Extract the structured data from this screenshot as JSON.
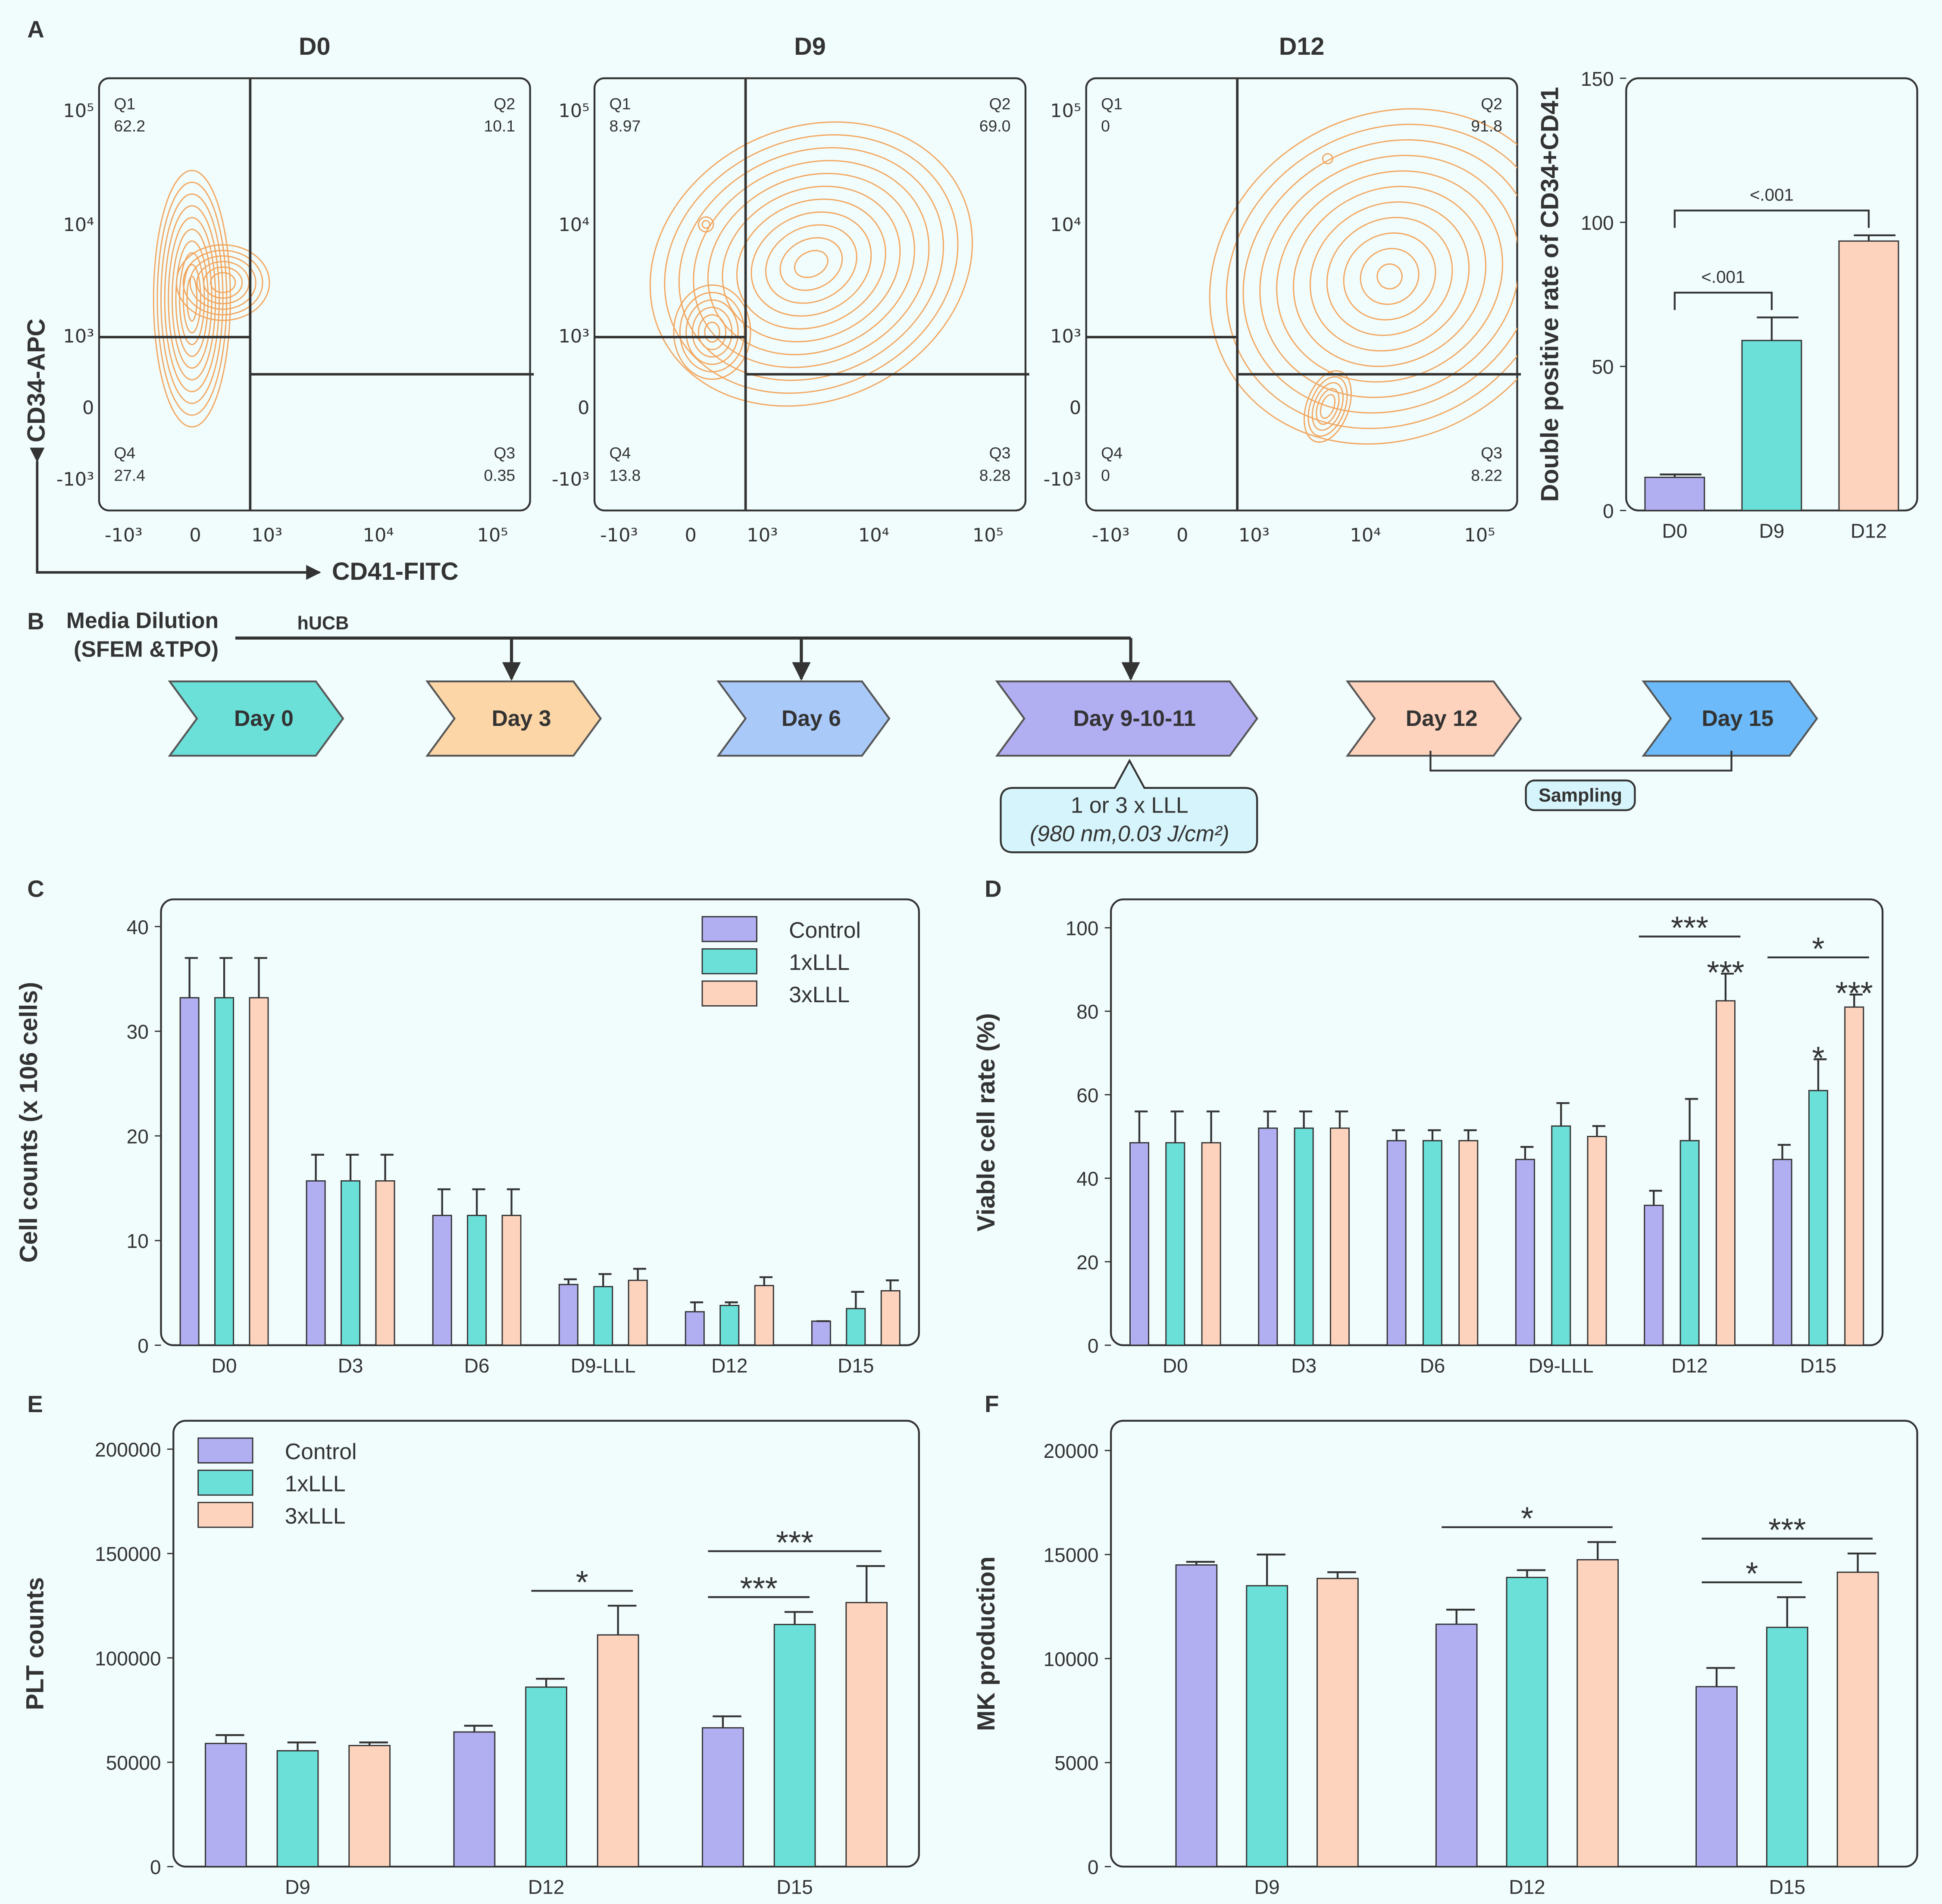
{
  "panel_labels": [
    "A",
    "B",
    "C",
    "D",
    "E",
    "F"
  ],
  "chart_data": [
    {
      "type": "contour",
      "title": "D0",
      "xlabel": "CD41-FITC",
      "ylabel": "CD34-APC",
      "scale": "biexponential",
      "color": "#f2a65e",
      "xlim": [
        -1700,
        213000
      ],
      "ylim": [
        -1950,
        193000
      ],
      "xticks": [
        {
          "value": -1000,
          "label": "-10³"
        },
        0,
        {
          "value": 1000,
          "label": "10³"
        },
        {
          "value": 10000,
          "label": "10⁴"
        },
        {
          "value": 100000,
          "label": "10⁵"
        }
      ],
      "yticks": [
        {
          "value": -1000,
          "label": "-10³"
        },
        0,
        {
          "value": 1000,
          "label": "10³"
        },
        {
          "value": 10000,
          "label": "10⁴"
        },
        {
          "value": 100000,
          "label": "10⁵"
        }
      ],
      "quadrants": [
        {
          "name": "Q1",
          "value": 62.2
        },
        {
          "name": "Q2",
          "value": 10.1
        },
        {
          "name": "Q3",
          "value": 0.35
        },
        {
          "name": "Q4",
          "value": 27.4
        }
      ]
    },
    {
      "type": "contour",
      "title": "D9",
      "scale": "biexponential",
      "color": "#f2a65e",
      "xlim": [
        -1700,
        213000
      ],
      "ylim": [
        -1950,
        193000
      ],
      "xticks": [
        {
          "value": -1000,
          "label": "-10³"
        },
        0,
        {
          "value": 1000,
          "label": "10³"
        },
        {
          "value": 10000,
          "label": "10⁴"
        },
        {
          "value": 100000,
          "label": "10⁵"
        }
      ],
      "yticks": [
        {
          "value": -1000,
          "label": "-10³"
        },
        0,
        {
          "value": 1000,
          "label": "10³"
        },
        {
          "value": 10000,
          "label": "10⁴"
        },
        {
          "value": 100000,
          "label": "10⁵"
        }
      ],
      "quadrants": [
        {
          "name": "Q1",
          "value": 8.97
        },
        {
          "name": "Q2",
          "value": 69,
          "label": "69.0"
        },
        {
          "name": "Q3",
          "value": 8.28
        },
        {
          "name": "Q4",
          "value": 13.8
        }
      ]
    },
    {
      "type": "contour",
      "title": "D12",
      "scale": "biexponential",
      "color": "#f2a65e",
      "xlim": [
        -1700,
        213000
      ],
      "ylim": [
        -1950,
        193000
      ],
      "xticks": [
        {
          "value": -1000,
          "label": "-10³"
        },
        0,
        {
          "value": 1000,
          "label": "10³"
        },
        {
          "value": 10000,
          "label": "10⁴"
        },
        {
          "value": 100000,
          "label": "10⁵"
        }
      ],
      "yticks": [
        {
          "value": -1000,
          "label": "-10³"
        },
        0,
        {
          "value": 1000,
          "label": "10³"
        },
        {
          "value": 10000,
          "label": "10⁴"
        },
        {
          "value": 100000,
          "label": "10⁵"
        }
      ],
      "quadrants": [
        {
          "name": "Q1",
          "value": 0
        },
        {
          "name": "Q2",
          "value": 91.8
        },
        {
          "name": "Q3",
          "value": 8.22
        },
        {
          "name": "Q4",
          "value": 0
        }
      ]
    },
    {
      "type": "bar",
      "ylabel": "Double positive rate of CD34+CD41",
      "categories": [
        "D0",
        "D9",
        "D12"
      ],
      "values": [
        11.5,
        59,
        93.5
      ],
      "errors": [
        1,
        8,
        2
      ],
      "colors": [
        "#b1aef2",
        "#6be0d9",
        "#fdd3bd"
      ],
      "ylim": [
        0,
        150
      ],
      "yticks": [
        0,
        50,
        100,
        150
      ],
      "annotations": [
        {
          "text": "<.001",
          "categories": [
            "D0",
            "D9"
          ]
        },
        {
          "text": "<.001",
          "categories": [
            "D0",
            "D12"
          ]
        }
      ]
    },
    {
      "type": "grouped_bar",
      "ylabel": "Cell counts (x 106 cells)",
      "categories": [
        "D0",
        "D3",
        "D6",
        "D9-LLL",
        "D12",
        "D15"
      ],
      "series": [
        {
          "name": "Control",
          "color": "#b1aef2",
          "values": [
            33.2,
            15.7,
            12.4,
            5.8,
            3.2,
            2.3
          ],
          "errors": [
            3.8,
            2.5,
            2.5,
            0.5,
            0.9,
            0
          ]
        },
        {
          "name": "1xLLL",
          "color": "#6be0d9",
          "values": [
            33.2,
            15.7,
            12.4,
            5.6,
            3.8,
            3.5
          ],
          "errors": [
            3.8,
            2.5,
            2.5,
            1.2,
            0.3,
            1.6
          ]
        },
        {
          "name": "3xLLL",
          "color": "#fdd3bd",
          "values": [
            33.2,
            15.7,
            12.4,
            6.2,
            5.7,
            5.2
          ],
          "errors": [
            3.8,
            2.5,
            2.5,
            1.1,
            0.8,
            1
          ]
        }
      ],
      "ylim": [
        0,
        42.6
      ],
      "yticks": [
        0,
        10,
        20,
        30,
        40
      ],
      "legend": "upper right",
      "annotations": []
    },
    {
      "type": "grouped_bar",
      "ylabel": "Viable cell rate (%)",
      "categories": [
        "D0",
        "D3",
        "D6",
        "D9-LLL",
        "D12",
        "D15"
      ],
      "series": [
        {
          "name": "Control",
          "color": "#b1aef2",
          "values": [
            48.5,
            52,
            49,
            44.5,
            33.5,
            44.5
          ],
          "errors": [
            7.5,
            4,
            2.5,
            3,
            3.5,
            3.5
          ]
        },
        {
          "name": "1xLLL",
          "color": "#6be0d9",
          "values": [
            48.5,
            52,
            49,
            52.5,
            49,
            61
          ],
          "errors": [
            7.5,
            4,
            2.5,
            5.5,
            10,
            7.5
          ]
        },
        {
          "name": "3xLLL",
          "color": "#fdd3bd",
          "values": [
            48.5,
            52,
            49,
            50,
            82.5,
            81
          ],
          "errors": [
            7.5,
            4,
            2.5,
            2.5,
            6.5,
            3
          ]
        }
      ],
      "ylim": [
        0,
        106.8
      ],
      "yticks": [
        0,
        20,
        40,
        60,
        80,
        100
      ],
      "annotations": [
        {
          "text": "***",
          "category": "D12",
          "series": [
            "3xLLL"
          ]
        },
        {
          "text": "***",
          "category": "D12",
          "series": [
            "Control",
            "3xLLL"
          ]
        },
        {
          "text": "*",
          "category": "D15",
          "series": [
            "1xLLL"
          ]
        },
        {
          "text": "***",
          "category": "D15",
          "series": [
            "3xLLL"
          ]
        },
        {
          "text": "*",
          "category": "D15",
          "series": [
            "Control",
            "3xLLL"
          ]
        }
      ]
    },
    {
      "type": "grouped_bar",
      "ylabel": "PLT counts",
      "categories": [
        "D9",
        "D12",
        "D15"
      ],
      "series": [
        {
          "name": "Control",
          "color": "#b1aef2",
          "values": [
            59000,
            64500,
            66500
          ],
          "errors": [
            4000,
            3000,
            5500
          ]
        },
        {
          "name": "1xLLL",
          "color": "#6be0d9",
          "values": [
            55500,
            86000,
            116000
          ],
          "errors": [
            4000,
            4000,
            6000
          ]
        },
        {
          "name": "3xLLL",
          "color": "#fdd3bd",
          "values": [
            58000,
            111000,
            126500
          ],
          "errors": [
            1500,
            14000,
            17500
          ]
        }
      ],
      "ylim": [
        0,
        213600
      ],
      "yticks": [
        0,
        50000,
        100000,
        150000,
        200000
      ],
      "legend": "upper left",
      "annotations": [
        {
          "text": "*",
          "category": "D12",
          "series": [
            "1xLLL",
            "3xLLL"
          ]
        },
        {
          "text": "***",
          "category": "D15",
          "series": [
            "Control",
            "1xLLL"
          ]
        },
        {
          "text": "***",
          "category": "D15",
          "series": [
            "Control",
            "3xLLL"
          ]
        }
      ]
    },
    {
      "type": "grouped_bar",
      "ylabel": "MK production",
      "categories": [
        "D9",
        "D12",
        "D15"
      ],
      "series": [
        {
          "name": "Control",
          "color": "#b1aef2",
          "values": [
            14500,
            11650,
            8650
          ],
          "errors": [
            150,
            700,
            900
          ]
        },
        {
          "name": "1xLLL",
          "color": "#6be0d9",
          "values": [
            13500,
            13900,
            11500
          ],
          "errors": [
            1500,
            350,
            1450
          ]
        },
        {
          "name": "3xLLL",
          "color": "#fdd3bd",
          "values": [
            13850,
            14750,
            14150
          ],
          "errors": [
            300,
            850,
            900
          ]
        }
      ],
      "ylim": [
        0,
        21430
      ],
      "yticks": [
        0,
        5000,
        10000,
        15000,
        20000
      ],
      "annotations": [
        {
          "text": "*",
          "category": "D12",
          "series": [
            "Control",
            "3xLLL"
          ]
        },
        {
          "text": "*",
          "category": "D15",
          "series": [
            "Control",
            "1xLLL"
          ]
        },
        {
          "text": "***",
          "category": "D15",
          "series": [
            "Control",
            "3xLLL"
          ]
        }
      ]
    }
  ],
  "timeline": {
    "source": [
      "Media Dilution",
      "(SFEM &TPO)"
    ],
    "feed": "hUCB",
    "steps": [
      {
        "label": "Day 0",
        "color": "#6be0d9"
      },
      {
        "label": "Day 3",
        "color": "#fdd6a8"
      },
      {
        "label": "Day 6",
        "color": "#a9c9f9"
      },
      {
        "label": "Day 9-10-11",
        "color": "#b1aef2"
      },
      {
        "label": "Day 12",
        "color": "#fdd3bd"
      },
      {
        "label": "Day 15",
        "color": "#6cbaf9"
      }
    ],
    "treatment": [
      "1 or 3 x LLL",
      "(980 nm,0.03 J/cm²)"
    ],
    "sampling": "Sampling"
  }
}
